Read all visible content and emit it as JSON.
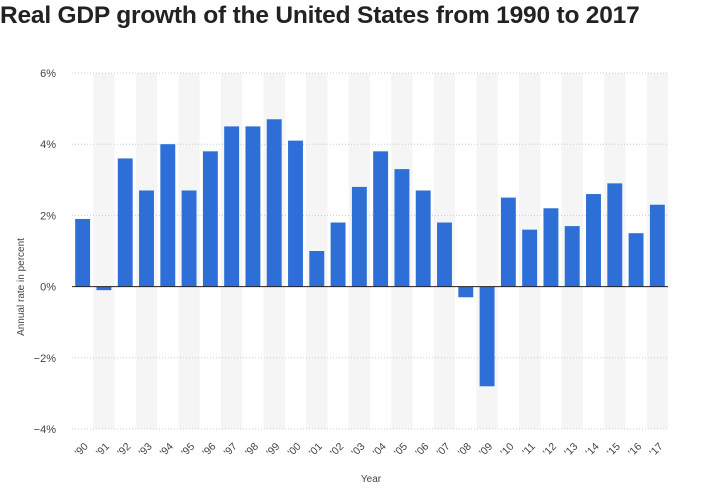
{
  "page": {
    "title": "Real GDP growth of the United States from 1990 to 2017"
  },
  "colors": {
    "bar": "#2d6fd6",
    "band": "#f5f5f5",
    "grid": "#cccccc",
    "zero_line": "#222222",
    "title": "#222222"
  },
  "chart_data": {
    "type": "bar",
    "title": "Real GDP growth of the United States from 1990 to 2017",
    "xlabel": "Year",
    "ylabel": "Annual rate in percent",
    "ylim": [
      -4,
      6
    ],
    "yticks": [
      6,
      4,
      2,
      0,
      -2,
      -4
    ],
    "ytick_labels": [
      "6%",
      "4%",
      "2%",
      "0%",
      "−2%",
      "−4%"
    ],
    "grid": true,
    "categories": [
      "'90",
      "'91",
      "'92",
      "'93",
      "'94",
      "'95",
      "'96",
      "'97",
      "'98",
      "'99",
      "'00",
      "'01",
      "'02",
      "'03",
      "'04",
      "'05",
      "'06",
      "'07",
      "'08",
      "'09",
      "'10",
      "'11",
      "'12",
      "'13",
      "'14",
      "'15",
      "'16",
      "'17"
    ],
    "values": [
      1.9,
      -0.1,
      3.6,
      2.7,
      4.0,
      2.7,
      3.8,
      4.5,
      4.5,
      4.7,
      4.1,
      1.0,
      1.8,
      2.8,
      3.8,
      3.3,
      2.7,
      1.8,
      -0.3,
      -2.8,
      2.5,
      1.6,
      2.2,
      1.7,
      2.6,
      2.9,
      1.5,
      2.3
    ]
  }
}
